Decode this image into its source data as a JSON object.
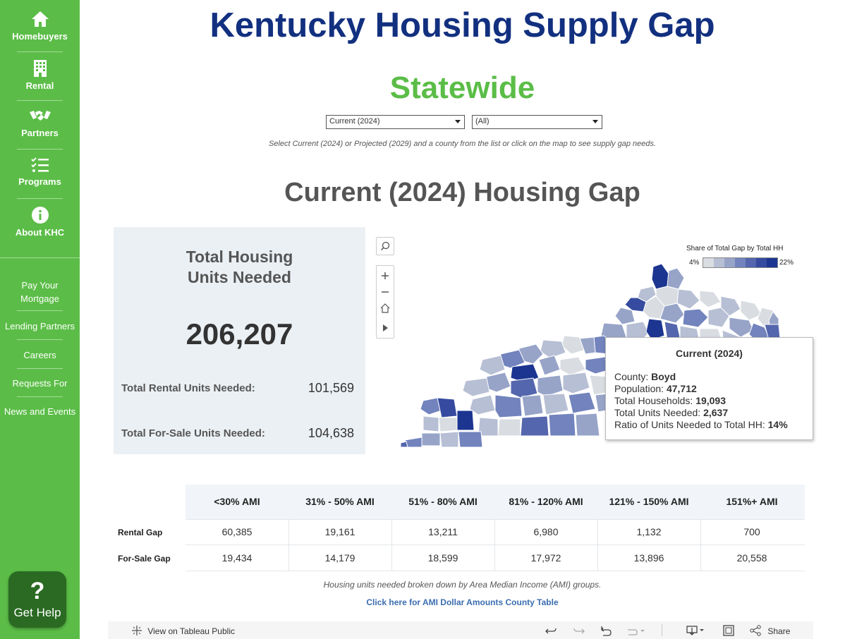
{
  "sidebar": {
    "nav": [
      {
        "label": "Homebuyers",
        "icon": "home-icon"
      },
      {
        "label": "Rental",
        "icon": "building-icon"
      },
      {
        "label": "Partners",
        "icon": "handshake-icon"
      },
      {
        "label": "Programs",
        "icon": "checklist-icon"
      },
      {
        "label": "About KHC",
        "icon": "info-icon"
      }
    ],
    "links": [
      "Pay Your Mortgage",
      "Lending Partners",
      "Careers",
      "Requests For",
      "News and Events"
    ],
    "help": {
      "icon_text": "?",
      "label": "Get Help"
    }
  },
  "header": {
    "title": "Kentucky Housing Supply Gap",
    "subtitle": "Statewide"
  },
  "filters": {
    "period": {
      "value": "Current (2024)"
    },
    "county": {
      "value": "(All)"
    },
    "instructions": "Select Current (2024) or Projected (2029) and a county from the list or click on the map to see supply gap needs."
  },
  "section_heading": "Current (2024) Housing Gap",
  "summary": {
    "title_line1": "Total Housing",
    "title_line2": "Units Needed",
    "total": "206,207",
    "rental_label": "Total Rental Units Needed:",
    "rental_value": "101,569",
    "forsale_label": "Total For-Sale Units Needed:",
    "forsale_value": "104,638"
  },
  "map": {
    "legend_title": "Share of Total Gap by Total HH",
    "legend_min": "4%",
    "legend_max": "22%",
    "legend_colors": [
      "#d9dde2",
      "#b7bfd4",
      "#97a4c8",
      "#7283bd",
      "#5466ad",
      "#364b9f",
      "#1c3590"
    ],
    "tooltip": {
      "title": "Current (2024)",
      "county_label": "County:",
      "county": "Boyd",
      "population_label": "Population:",
      "population": "47,712",
      "households_label": "Total Households:",
      "households": "19,093",
      "units_label": "Total Units Needed:",
      "units": "2,637",
      "ratio_label": "Ratio of Units Needed to Total HH:",
      "ratio": "14%"
    }
  },
  "ami_table": {
    "columns": [
      "<30% AMI",
      "31% - 50% AMI",
      "51% - 80% AMI",
      "81% - 120% AMI",
      "121% - 150% AMI",
      "151%+ AMI"
    ],
    "rows": [
      {
        "label": "Rental Gap",
        "values": [
          "60,385",
          "19,161",
          "13,211",
          "6,980",
          "1,132",
          "700"
        ]
      },
      {
        "label": "For-Sale Gap",
        "values": [
          "19,434",
          "14,179",
          "18,599",
          "17,972",
          "13,896",
          "20,558"
        ]
      }
    ],
    "note": "Housing units needed broken down by Area Median Income (AMI) groups.",
    "link": "Click here for AMI Dollar Amounts County Table"
  },
  "toolbar": {
    "view_label": "View on Tableau Public",
    "share_label": "Share"
  }
}
